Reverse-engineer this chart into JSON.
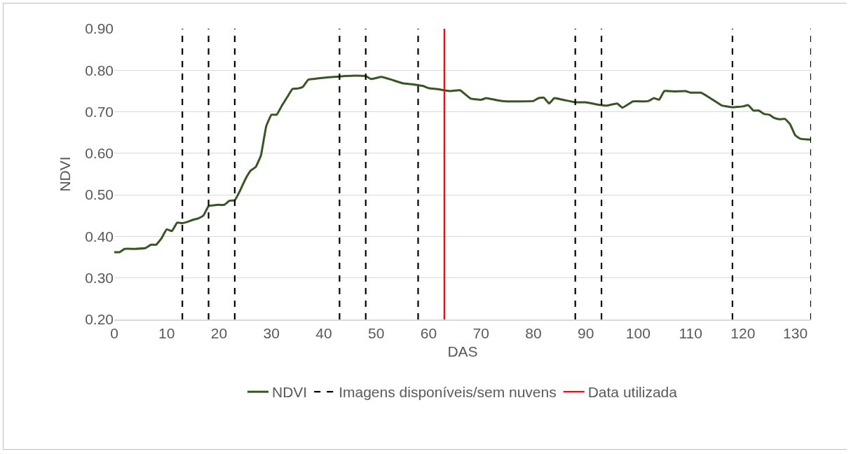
{
  "chart_data": {
    "type": "line",
    "xlabel": "DAS",
    "ylabel": "NDVI",
    "x": [
      0,
      1,
      2,
      4,
      6,
      7,
      8,
      9,
      10,
      11,
      12,
      13,
      14,
      15,
      16,
      17,
      18,
      19,
      20,
      21,
      22,
      23,
      24,
      25,
      26,
      27,
      28,
      29,
      30,
      31,
      32,
      33,
      34,
      35,
      36,
      37,
      38,
      40,
      42,
      44,
      46,
      48,
      49,
      51,
      53,
      55,
      57,
      59,
      60,
      62,
      64,
      66,
      68,
      70,
      71,
      73,
      75,
      77,
      80,
      81,
      82,
      83,
      84,
      86,
      88,
      90,
      92,
      94,
      96,
      97,
      99,
      101,
      102,
      103,
      104,
      105,
      107,
      109,
      110,
      112,
      114,
      116,
      118,
      120,
      121,
      122,
      123,
      124,
      125,
      126,
      127,
      128,
      129,
      130,
      131,
      133
    ],
    "series": [
      {
        "name": "NDVI",
        "color": "#375623",
        "values": [
          0.362,
          0.362,
          0.37,
          0.37,
          0.372,
          0.38,
          0.38,
          0.395,
          0.417,
          0.413,
          0.433,
          0.432,
          0.435,
          0.44,
          0.443,
          0.45,
          0.473,
          0.475,
          0.476,
          0.476,
          0.486,
          0.487,
          0.51,
          0.537,
          0.558,
          0.567,
          0.595,
          0.665,
          0.693,
          0.693,
          0.715,
          0.735,
          0.755,
          0.756,
          0.76,
          0.777,
          0.779,
          0.782,
          0.784,
          0.786,
          0.787,
          0.786,
          0.779,
          0.784,
          0.777,
          0.769,
          0.766,
          0.762,
          0.757,
          0.754,
          0.75,
          0.752,
          0.732,
          0.729,
          0.733,
          0.728,
          0.725,
          0.725,
          0.726,
          0.733,
          0.734,
          0.72,
          0.733,
          0.728,
          0.723,
          0.723,
          0.718,
          0.715,
          0.72,
          0.71,
          0.725,
          0.725,
          0.726,
          0.733,
          0.729,
          0.75,
          0.749,
          0.75,
          0.746,
          0.746,
          0.731,
          0.715,
          0.711,
          0.713,
          0.716,
          0.703,
          0.703,
          0.695,
          0.693,
          0.685,
          0.682,
          0.683,
          0.67,
          0.643,
          0.635,
          0.633
        ]
      }
    ],
    "ref_lines": [
      {
        "axis": "x",
        "value": 13,
        "label": "Imagens disponíveis/sem nuvens",
        "color": "#000000",
        "line_style": "dashed"
      },
      {
        "axis": "x",
        "value": 18,
        "color": "#000000",
        "line_style": "dashed"
      },
      {
        "axis": "x",
        "value": 23,
        "color": "#000000",
        "line_style": "dashed"
      },
      {
        "axis": "x",
        "value": 43,
        "color": "#000000",
        "line_style": "dashed"
      },
      {
        "axis": "x",
        "value": 48,
        "color": "#000000",
        "line_style": "dashed"
      },
      {
        "axis": "x",
        "value": 58,
        "color": "#000000",
        "line_style": "dashed"
      },
      {
        "axis": "x",
        "value": 88,
        "color": "#000000",
        "line_style": "dashed"
      },
      {
        "axis": "x",
        "value": 93,
        "color": "#000000",
        "line_style": "dashed"
      },
      {
        "axis": "x",
        "value": 118,
        "color": "#000000",
        "line_style": "dashed"
      },
      {
        "axis": "x",
        "value": 133,
        "color": "#000000",
        "line_style": "dashed"
      },
      {
        "axis": "x",
        "value": 63,
        "label": "Data utilizada",
        "color": "#ff0000",
        "line_style": "solid"
      }
    ],
    "xlim": [
      0,
      133
    ],
    "xticks": [
      0,
      10,
      20,
      30,
      40,
      50,
      60,
      70,
      80,
      90,
      100,
      110,
      120,
      130
    ],
    "ylim": [
      0.2,
      0.9
    ],
    "yticks": [
      {
        "value": 0.2,
        "label": "0.20"
      },
      {
        "value": 0.3,
        "label": "0.30"
      },
      {
        "value": 0.4,
        "label": "0.40"
      },
      {
        "value": 0.5,
        "label": "0.50"
      },
      {
        "value": 0.6,
        "label": "0.60"
      },
      {
        "value": 0.7,
        "label": "0.70"
      },
      {
        "value": 0.8,
        "label": "0.80"
      },
      {
        "value": 0.9,
        "label": "0.90"
      }
    ],
    "grid": "y",
    "legend": "bottom",
    "marker": "none",
    "line_style": "solid"
  }
}
